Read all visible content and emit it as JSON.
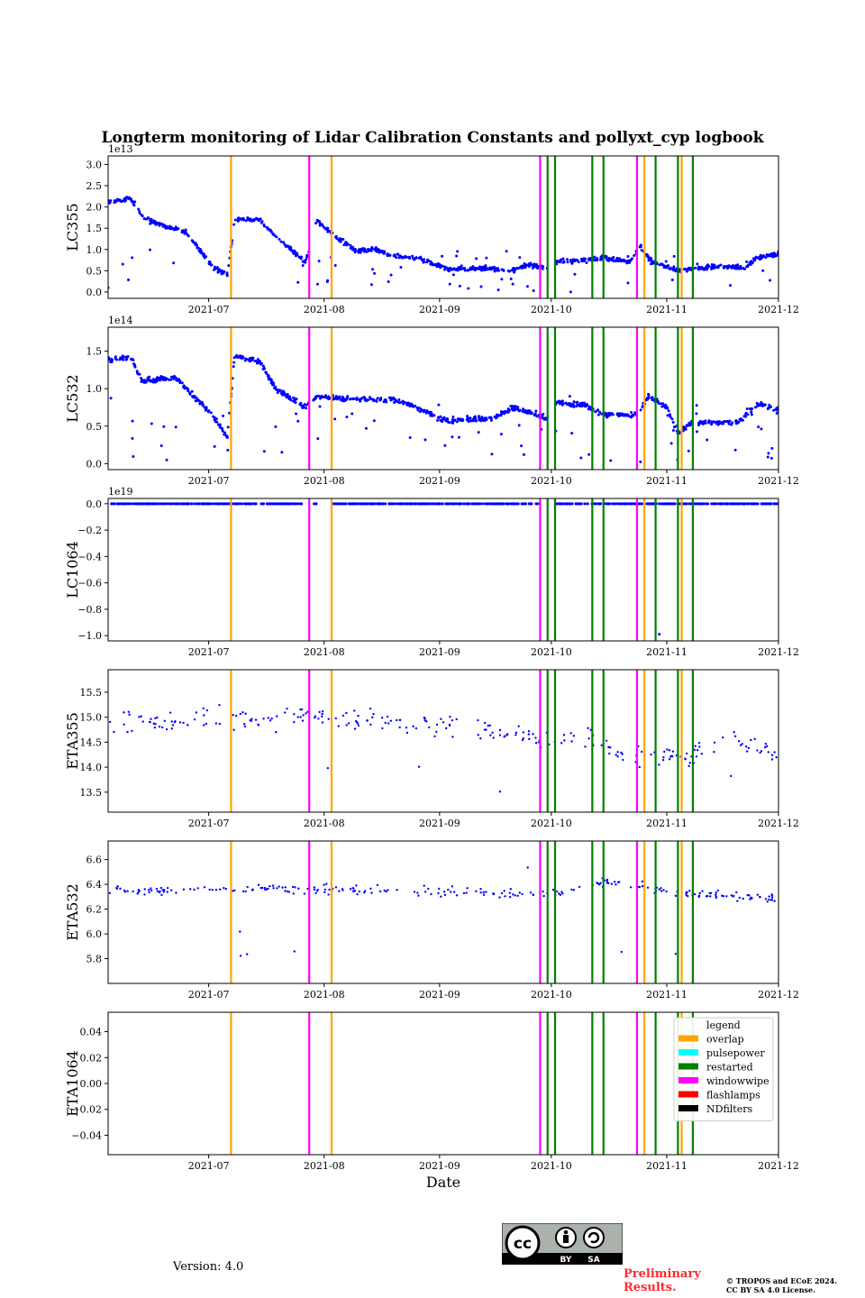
{
  "figure": {
    "title": "Longterm monitoring of Lidar Calibration Constants and pollyxt_cyp logbook",
    "xlabel": "Date",
    "version": "Version: 4.0",
    "preliminary": [
      "Preliminary",
      "Results."
    ],
    "copyright": [
      "© TROPOS and ECoE 2024.",
      "CC BY SA 4.0 License."
    ],
    "cc_badge": {
      "by": "BY",
      "sa": "SA"
    }
  },
  "chart_data": {
    "type": "scatter",
    "x_range": [
      "2021-06-04",
      "2021-12-01"
    ],
    "x_ticks": [
      "2021-07",
      "2021-08",
      "2021-09",
      "2021-10",
      "2021-11",
      "2021-12"
    ],
    "x_tick_dates": [
      "2021-07-01",
      "2021-08-01",
      "2021-09-01",
      "2021-10-01",
      "2021-11-01",
      "2021-12-01"
    ],
    "point_color": "#0000ff",
    "logbook_events": [
      {
        "type": "overlap",
        "date": "2021-07-07"
      },
      {
        "type": "windowwipe",
        "date": "2021-07-28"
      },
      {
        "type": "overlap",
        "date": "2021-08-03"
      },
      {
        "type": "windowwipe",
        "date": "2021-09-28"
      },
      {
        "type": "restarted",
        "date": "2021-09-30"
      },
      {
        "type": "restarted",
        "date": "2021-10-02"
      },
      {
        "type": "restarted",
        "date": "2021-10-12"
      },
      {
        "type": "restarted",
        "date": "2021-10-15"
      },
      {
        "type": "windowwipe",
        "date": "2021-10-24"
      },
      {
        "type": "overlap",
        "date": "2021-10-26"
      },
      {
        "type": "restarted",
        "date": "2021-10-29"
      },
      {
        "type": "restarted",
        "date": "2021-11-04"
      },
      {
        "type": "overlap",
        "date": "2021-11-05"
      },
      {
        "type": "restarted",
        "date": "2021-11-08"
      }
    ],
    "legend": {
      "title": "legend",
      "entries": [
        {
          "label": "overlap",
          "color": "#ffa500"
        },
        {
          "label": "pulsepower",
          "color": "#00ffff"
        },
        {
          "label": "restarted",
          "color": "#008000"
        },
        {
          "label": "windowwipe",
          "color": "#ff00ff"
        },
        {
          "label": "flashlamps",
          "color": "#ff0000"
        },
        {
          "label": "NDfilters",
          "color": "#000000"
        }
      ]
    },
    "panels": [
      {
        "ylabel": "LC355",
        "offset": "1e13",
        "ylim": [
          -0.15,
          3.2
        ],
        "yticks": [
          0.0,
          0.5,
          1.0,
          1.5,
          2.0,
          2.5,
          3.0
        ],
        "ytick_labels": [
          "0.0",
          "0.5",
          "1.0",
          "1.5",
          "2.0",
          "2.5",
          "3.0"
        ],
        "gaps": [
          [
            "2021-07-28",
            "2021-07-29"
          ],
          [
            "2021-09-30",
            "2021-10-02"
          ]
        ],
        "trend": [
          [
            "2021-06-04",
            2.1
          ],
          [
            "2021-06-10",
            2.2
          ],
          [
            "2021-06-14",
            1.7
          ],
          [
            "2021-06-25",
            1.4
          ],
          [
            "2021-07-02",
            0.6
          ],
          [
            "2021-07-06",
            0.4
          ],
          [
            "2021-07-08",
            1.7
          ],
          [
            "2021-07-15",
            1.7
          ],
          [
            "2021-07-19",
            1.3
          ],
          [
            "2021-07-27",
            0.7
          ],
          [
            "2021-07-30",
            1.7
          ],
          [
            "2021-08-04",
            1.3
          ],
          [
            "2021-08-10",
            0.95
          ],
          [
            "2021-08-15",
            1.0
          ],
          [
            "2021-08-20",
            0.85
          ],
          [
            "2021-08-26",
            0.8
          ],
          [
            "2021-09-03",
            0.55
          ],
          [
            "2021-09-15",
            0.55
          ],
          [
            "2021-09-20",
            0.5
          ],
          [
            "2021-09-25",
            0.65
          ],
          [
            "2021-09-30",
            0.55
          ],
          [
            "2021-10-02",
            0.7
          ],
          [
            "2021-10-10",
            0.75
          ],
          [
            "2021-10-15",
            0.8
          ],
          [
            "2021-10-22",
            0.7
          ],
          [
            "2021-10-25",
            1.05
          ],
          [
            "2021-10-28",
            0.7
          ],
          [
            "2021-11-04",
            0.5
          ],
          [
            "2021-11-15",
            0.6
          ],
          [
            "2021-11-22",
            0.55
          ],
          [
            "2021-11-25",
            0.8
          ],
          [
            "2021-12-01",
            0.9
          ]
        ],
        "noise": 0.08,
        "outlier_rate": 0.05,
        "outlier_range": [
          0.0,
          1.0
        ],
        "n": 1000,
        "seed": 11
      },
      {
        "ylabel": "LC532",
        "offset": "1e14",
        "ylim": [
          -0.08,
          1.82
        ],
        "yticks": [
          0.0,
          0.5,
          1.0,
          1.5
        ],
        "ytick_labels": [
          "0.0",
          "0.5",
          "1.0",
          "1.5"
        ],
        "gaps": [
          [
            "2021-07-28",
            "2021-07-29"
          ],
          [
            "2021-09-30",
            "2021-10-02"
          ]
        ],
        "trend": [
          [
            "2021-06-04",
            1.38
          ],
          [
            "2021-06-10",
            1.42
          ],
          [
            "2021-06-13",
            1.1
          ],
          [
            "2021-06-22",
            1.15
          ],
          [
            "2021-06-27",
            0.9
          ],
          [
            "2021-07-02",
            0.65
          ],
          [
            "2021-07-06",
            0.35
          ],
          [
            "2021-07-08",
            1.45
          ],
          [
            "2021-07-15",
            1.35
          ],
          [
            "2021-07-19",
            1.0
          ],
          [
            "2021-07-27",
            0.75
          ],
          [
            "2021-07-30",
            0.9
          ],
          [
            "2021-08-10",
            0.85
          ],
          [
            "2021-08-20",
            0.85
          ],
          [
            "2021-08-26",
            0.75
          ],
          [
            "2021-09-02",
            0.58
          ],
          [
            "2021-09-15",
            0.6
          ],
          [
            "2021-09-21",
            0.75
          ],
          [
            "2021-09-30",
            0.6
          ],
          [
            "2021-10-02",
            0.82
          ],
          [
            "2021-10-10",
            0.78
          ],
          [
            "2021-10-15",
            0.65
          ],
          [
            "2021-10-24",
            0.65
          ],
          [
            "2021-10-27",
            0.9
          ],
          [
            "2021-11-01",
            0.75
          ],
          [
            "2021-11-04",
            0.4
          ],
          [
            "2021-11-08",
            0.55
          ],
          [
            "2021-11-20",
            0.55
          ],
          [
            "2021-11-26",
            0.8
          ],
          [
            "2021-12-01",
            0.7
          ]
        ],
        "noise": 0.05,
        "outlier_rate": 0.06,
        "outlier_range": [
          0.0,
          0.9
        ],
        "n": 1000,
        "seed": 23
      },
      {
        "ylabel": "LC1064",
        "offset": "1e19",
        "ylim": [
          -1.04,
          0.04
        ],
        "yticks": [
          0.0,
          -0.2,
          -0.4,
          -0.6,
          -0.8,
          -1.0
        ],
        "ytick_labels": [
          "0.0",
          "−0.2",
          "−0.4",
          "−0.6",
          "−0.8",
          "−1.0"
        ],
        "gaps": [
          [
            "2021-07-26",
            "2021-07-29"
          ],
          [
            "2021-07-30",
            "2021-08-03"
          ],
          [
            "2021-09-28",
            "2021-10-02"
          ]
        ],
        "trend": [
          [
            "2021-06-04",
            0.0
          ],
          [
            "2021-12-01",
            0.0
          ]
        ],
        "noise": 0.0,
        "outlier_rate": 0.0,
        "outlier_range": [
          0,
          0
        ],
        "n": 900,
        "seed": 5,
        "extra_points": [
          [
            "2021-10-30",
            -0.99
          ]
        ]
      },
      {
        "ylabel": "ETA355",
        "offset": "",
        "ylim": [
          13.1,
          15.95
        ],
        "yticks": [
          13.5,
          14.0,
          14.5,
          15.0,
          15.5
        ],
        "ytick_labels": [
          "13.5",
          "14.0",
          "14.5",
          "15.0",
          "15.5"
        ],
        "gaps": [
          [
            "2021-07-28",
            "2021-07-29"
          ]
        ],
        "trend": [
          [
            "2021-06-04",
            14.9
          ],
          [
            "2021-07-10",
            14.95
          ],
          [
            "2021-08-01",
            15.0
          ],
          [
            "2021-09-01",
            14.85
          ],
          [
            "2021-09-25",
            14.6
          ],
          [
            "2021-10-10",
            14.6
          ],
          [
            "2021-10-20",
            14.2
          ],
          [
            "2021-11-05",
            14.2
          ],
          [
            "2021-11-20",
            14.6
          ],
          [
            "2021-12-01",
            14.2
          ]
        ],
        "noise": 0.32,
        "outlier_rate": 0.03,
        "outlier_range": [
          13.2,
          15.8
        ],
        "n": 260,
        "seed": 37
      },
      {
        "ylabel": "ETA532",
        "offset": "",
        "ylim": [
          5.6,
          6.75
        ],
        "yticks": [
          5.8,
          6.0,
          6.2,
          6.4,
          6.6
        ],
        "ytick_labels": [
          "5.8",
          "6.0",
          "6.2",
          "6.4",
          "6.6"
        ],
        "gaps": [
          [
            "2021-07-28",
            "2021-07-29"
          ]
        ],
        "trend": [
          [
            "2021-06-04",
            6.35
          ],
          [
            "2021-08-01",
            6.36
          ],
          [
            "2021-09-01",
            6.34
          ],
          [
            "2021-10-01",
            6.32
          ],
          [
            "2021-10-15",
            6.42
          ],
          [
            "2021-11-05",
            6.33
          ],
          [
            "2021-12-01",
            6.28
          ]
        ],
        "noise": 0.055,
        "outlier_rate": 0.02,
        "outlier_range": [
          5.65,
          6.68
        ],
        "n": 260,
        "seed": 41
      },
      {
        "ylabel": "ETA1064",
        "offset": "",
        "ylim": [
          -0.055,
          0.055
        ],
        "yticks": [
          0.04,
          0.02,
          0.0,
          -0.02,
          -0.04
        ],
        "ytick_labels": [
          "0.04",
          "0.02",
          "0.00",
          "−0.02",
          "−0.04"
        ],
        "gaps": [],
        "trend": [],
        "noise": 0.0,
        "outlier_rate": 0.0,
        "outlier_range": [
          0,
          0
        ],
        "n": 0,
        "seed": 1,
        "has_legend": true
      }
    ]
  }
}
